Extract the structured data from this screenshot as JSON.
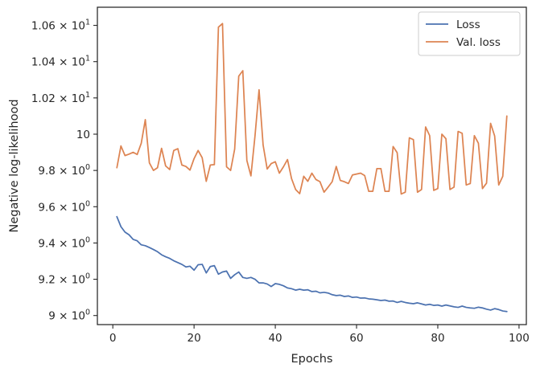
{
  "chart_data": {
    "type": "line",
    "xlabel": "Epochs",
    "ylabel": "Negative log-likelihood",
    "xlim": [
      -3.8,
      101.8
    ],
    "ylim": [
      8.95,
      10.7
    ],
    "x_ticks": [
      {
        "value": 0,
        "label": "0"
      },
      {
        "value": 20,
        "label": "20"
      },
      {
        "value": 40,
        "label": "40"
      },
      {
        "value": 60,
        "label": "60"
      },
      {
        "value": 80,
        "label": "80"
      },
      {
        "value": 100,
        "label": "100"
      }
    ],
    "y_ticks": [
      {
        "value": 9.0,
        "label_main": "9 × 10",
        "label_exp": "0"
      },
      {
        "value": 9.2,
        "label_main": "9.2 × 10",
        "label_exp": "0"
      },
      {
        "value": 9.4,
        "label_main": "9.4 × 10",
        "label_exp": "0"
      },
      {
        "value": 9.6,
        "label_main": "9.6 × 10",
        "label_exp": "0"
      },
      {
        "value": 9.8,
        "label_main": "9.8 × 10",
        "label_exp": "0"
      },
      {
        "value": 10.0,
        "label_main": "10",
        "label_exp": "1"
      },
      {
        "value": 10.2,
        "label_main": "1.02 × 10",
        "label_exp": "1"
      },
      {
        "value": 10.4,
        "label_main": "1.04 × 10",
        "label_exp": "1"
      },
      {
        "value": 10.6,
        "label_main": "1.06 × 10",
        "label_exp": "1"
      }
    ],
    "legend_position": "top-right",
    "grid": false,
    "series": [
      {
        "name": "Loss",
        "color": "#4c72b0",
        "x": [
          1,
          2,
          3,
          4,
          5,
          6,
          7,
          8,
          9,
          10,
          11,
          12,
          13,
          14,
          15,
          16,
          17,
          18,
          19,
          20,
          21,
          22,
          23,
          24,
          25,
          26,
          27,
          28,
          29,
          30,
          31,
          32,
          33,
          34,
          35,
          36,
          37,
          38,
          39,
          40,
          41,
          42,
          43,
          44,
          45,
          46,
          47,
          48,
          49,
          50,
          51,
          52,
          53,
          54,
          55,
          56,
          57,
          58,
          59,
          60,
          61,
          62,
          63,
          64,
          65,
          66,
          67,
          68,
          69,
          70,
          71,
          72,
          73,
          74,
          75,
          76,
          77,
          78,
          79,
          80,
          81,
          82,
          83,
          84,
          85,
          86,
          87,
          88,
          89,
          90,
          91,
          92,
          93,
          94,
          95,
          96,
          97
        ],
        "y": [
          9.545,
          9.49,
          9.46,
          9.445,
          9.42,
          9.412,
          9.39,
          9.385,
          9.375,
          9.364,
          9.352,
          9.335,
          9.324,
          9.315,
          9.302,
          9.292,
          9.282,
          9.268,
          9.272,
          9.25,
          9.28,
          9.282,
          9.235,
          9.27,
          9.275,
          9.228,
          9.24,
          9.245,
          9.205,
          9.225,
          9.24,
          9.21,
          9.205,
          9.21,
          9.2,
          9.18,
          9.18,
          9.174,
          9.16,
          9.176,
          9.172,
          9.164,
          9.152,
          9.148,
          9.14,
          9.145,
          9.14,
          9.142,
          9.132,
          9.134,
          9.125,
          9.128,
          9.124,
          9.115,
          9.11,
          9.112,
          9.105,
          9.108,
          9.1,
          9.102,
          9.096,
          9.097,
          9.092,
          9.09,
          9.087,
          9.083,
          9.085,
          9.079,
          9.08,
          9.072,
          9.078,
          9.072,
          9.068,
          9.065,
          9.07,
          9.064,
          9.058,
          9.062,
          9.056,
          9.058,
          9.052,
          9.058,
          9.053,
          9.048,
          9.045,
          9.052,
          9.045,
          9.042,
          9.04,
          9.046,
          9.042,
          9.035,
          9.03,
          9.038,
          9.033,
          9.025,
          9.022
        ]
      },
      {
        "name": "Val. loss",
        "color": "#dd8452",
        "x": [
          1,
          2,
          3,
          4,
          5,
          6,
          7,
          8,
          9,
          10,
          11,
          12,
          13,
          14,
          15,
          16,
          17,
          18,
          19,
          20,
          21,
          22,
          23,
          24,
          25,
          26,
          27,
          28,
          29,
          30,
          31,
          32,
          33,
          34,
          35,
          36,
          37,
          38,
          39,
          40,
          41,
          42,
          43,
          44,
          45,
          46,
          47,
          48,
          49,
          50,
          51,
          52,
          53,
          54,
          55,
          56,
          57,
          58,
          59,
          60,
          61,
          62,
          63,
          64,
          65,
          66,
          67,
          68,
          69,
          70,
          71,
          72,
          73,
          74,
          75,
          76,
          77,
          78,
          79,
          80,
          81,
          82,
          83,
          84,
          85,
          86,
          87,
          88,
          89,
          90,
          91,
          92,
          93,
          94,
          95,
          96,
          97
        ],
        "y": [
          9.815,
          9.935,
          9.882,
          9.89,
          9.9,
          9.888,
          9.95,
          10.08,
          9.842,
          9.8,
          9.815,
          9.922,
          9.825,
          9.805,
          9.91,
          9.92,
          9.83,
          9.822,
          9.802,
          9.865,
          9.91,
          9.87,
          9.74,
          9.83,
          9.832,
          10.59,
          10.61,
          9.82,
          9.8,
          9.918,
          10.32,
          10.35,
          9.855,
          9.77,
          9.99,
          10.245,
          9.94,
          9.808,
          9.838,
          9.848,
          9.785,
          9.82,
          9.86,
          9.755,
          9.695,
          9.672,
          9.768,
          9.74,
          9.785,
          9.75,
          9.738,
          9.68,
          9.708,
          9.738,
          9.822,
          9.745,
          9.738,
          9.728,
          9.775,
          9.78,
          9.785,
          9.772,
          9.685,
          9.685,
          9.81,
          9.81,
          9.685,
          9.685,
          9.932,
          9.898,
          9.67,
          9.68,
          9.98,
          9.97,
          9.68,
          9.695,
          10.04,
          9.992,
          9.69,
          9.7,
          10.0,
          9.975,
          9.695,
          9.708,
          10.015,
          10.005,
          9.72,
          9.728,
          9.992,
          9.95,
          9.7,
          9.73,
          10.06,
          9.99,
          9.72,
          9.768,
          10.1
        ]
      }
    ]
  }
}
